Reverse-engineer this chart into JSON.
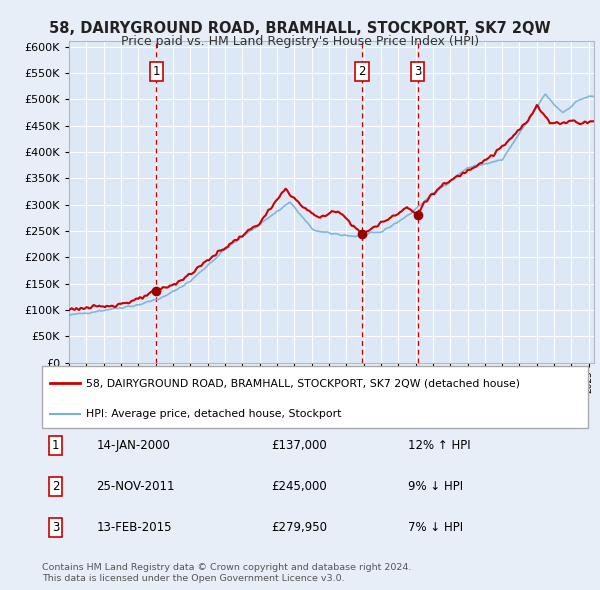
{
  "title": "58, DAIRYGROUND ROAD, BRAMHALL, STOCKPORT, SK7 2QW",
  "subtitle": "Price paid vs. HM Land Registry's House Price Index (HPI)",
  "background_color": "#e8eef8",
  "plot_background": "#dce8f5",
  "grid_color": "#ffffff",
  "transactions": [
    {
      "label": "1",
      "date_num": 2000.038,
      "price": 137000,
      "hpi_diff": "12% ↑ HPI",
      "date_str": "14-JAN-2000"
    },
    {
      "label": "2",
      "date_num": 2011.899,
      "price": 245000,
      "hpi_diff": "9% ↓ HPI",
      "date_str": "25-NOV-2011"
    },
    {
      "label": "3",
      "date_num": 2015.12,
      "price": 279950,
      "hpi_diff": "7% ↓ HPI",
      "date_str": "13-FEB-2015"
    }
  ],
  "hpi_line_color": "#7ab0d8",
  "property_line_color": "#cc0000",
  "dot_color": "#990000",
  "legend_property_label": "58, DAIRYGROUND ROAD, BRAMHALL, STOCKPORT, SK7 2QW (detached house)",
  "legend_hpi_label": "HPI: Average price, detached house, Stockport",
  "footer": "Contains HM Land Registry data © Crown copyright and database right 2024.\nThis data is licensed under the Open Government Licence v3.0.",
  "ylim": [
    0,
    610000
  ],
  "xlim": [
    1995,
    2025.3
  ],
  "yticks": [
    0,
    50000,
    100000,
    150000,
    200000,
    250000,
    300000,
    350000,
    400000,
    450000,
    500000,
    550000,
    600000
  ]
}
